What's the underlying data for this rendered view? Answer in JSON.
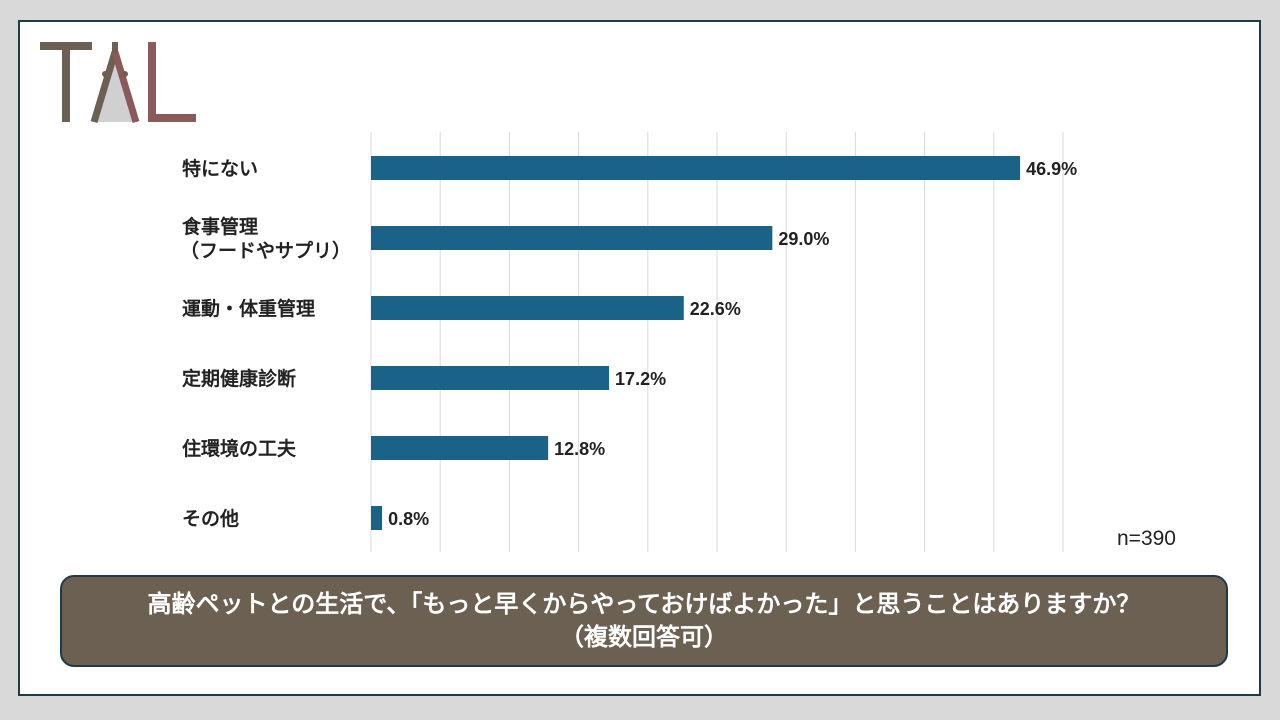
{
  "logo": {
    "text": "TAL",
    "colors": [
      "#6b6052",
      "#8a5a5a"
    ]
  },
  "sample_size": "n=390",
  "question": {
    "line1": "高齢ペットとの生活で、「もっと早くからやっておけばよかった」と思うことはありますか？",
    "line2": "（複数回答可）"
  },
  "colors": {
    "bar": "#1a6288",
    "frame": "#1f3a4a",
    "question_bg": "#6b6052"
  },
  "chart_data": {
    "type": "bar",
    "orientation": "horizontal",
    "categories": [
      [
        "特にない"
      ],
      [
        "食事管理",
        "（フードやサプリ）"
      ],
      [
        "運動・体重管理"
      ],
      [
        "定期健康診断"
      ],
      [
        "住環境の工夫"
      ],
      [
        "その他"
      ]
    ],
    "values": [
      46.9,
      29.0,
      22.6,
      17.2,
      12.8,
      0.8
    ],
    "data_labels": [
      "46.9%",
      "29.0%",
      "22.6%",
      "17.2%",
      "12.8%",
      "0.8%"
    ],
    "xlim": [
      0,
      50
    ],
    "grid": true,
    "unit": "%"
  }
}
